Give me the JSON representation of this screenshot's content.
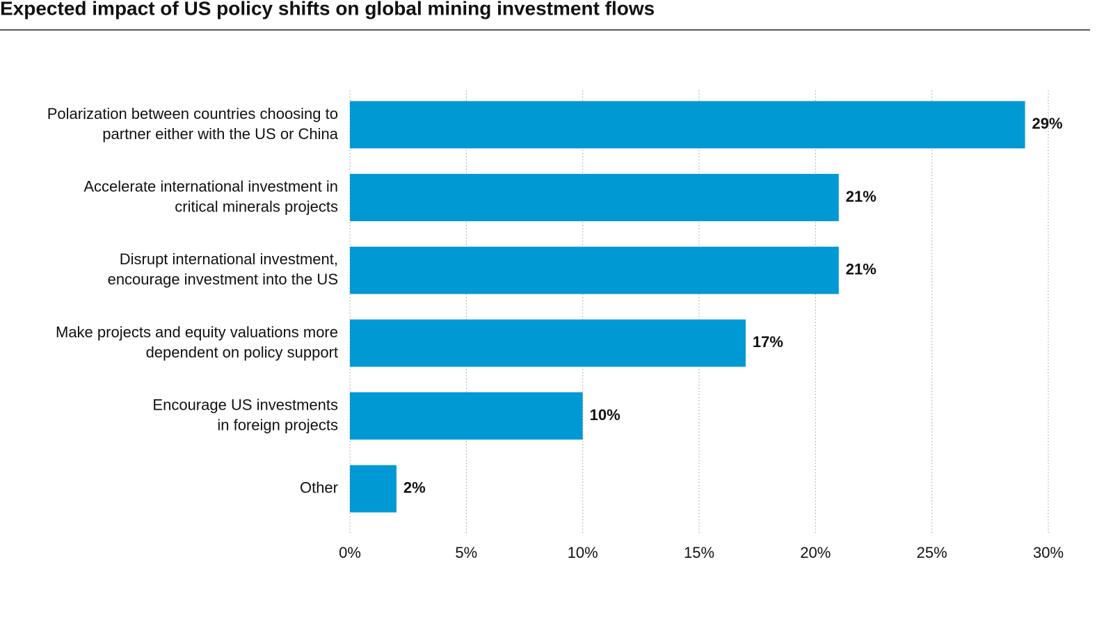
{
  "chart_data": {
    "type": "bar",
    "orientation": "horizontal",
    "title": "Expected impact of US policy shifts on global mining investment flows",
    "categories": [
      "Polarization between countries choosing to\npartner either with the US or China",
      "Accelerate international investment in\ncritical minerals projects",
      "Disrupt international investment,\nencourage investment into the US",
      "Make projects and equity valuations more\ndependent on policy support",
      "Encourage US investments\nin foreign projects",
      "Other"
    ],
    "values": [
      29,
      21,
      21,
      17,
      10,
      2
    ],
    "value_labels": [
      "29%",
      "21%",
      "21%",
      "17%",
      "10%",
      "2%"
    ],
    "color": "#0099d4",
    "xlim": [
      0,
      30
    ],
    "xticks": [
      {
        "value": 0,
        "label": "0%"
      },
      {
        "value": 5,
        "label": "5%"
      },
      {
        "value": 10,
        "label": "10%"
      },
      {
        "value": 15,
        "label": "15%"
      },
      {
        "value": 20,
        "label": "20%"
      },
      {
        "value": 25,
        "label": "25%"
      },
      {
        "value": 30,
        "label": "30%"
      }
    ],
    "grid": true
  }
}
